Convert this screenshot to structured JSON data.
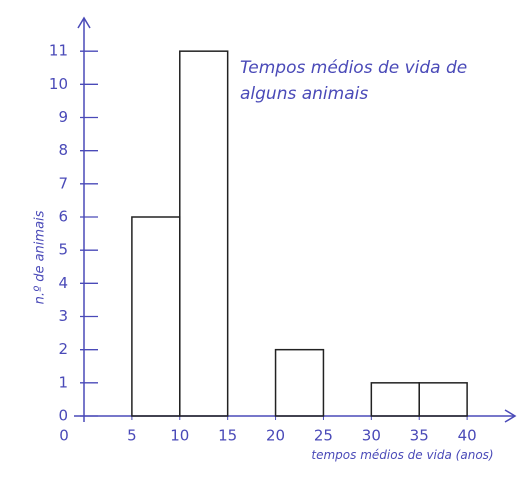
{
  "chart_data": {
    "type": "histogram",
    "title": "Tempos médios de vida de alguns animais",
    "x_label": "tempos médios de vida (anos)",
    "y_label": "n.º de animais",
    "bins": [
      0,
      5,
      10,
      15,
      20,
      25,
      30,
      35,
      40
    ],
    "values": [
      0,
      6,
      11,
      0,
      2,
      0,
      1,
      1
    ],
    "color": "#222222",
    "xlim": [
      0,
      45
    ],
    "ylim": [
      0,
      12
    ],
    "xticks": [
      0,
      5,
      10,
      15,
      20,
      25,
      30,
      35,
      40
    ],
    "yticks": [
      0,
      1,
      2,
      3,
      4,
      5,
      6,
      7,
      8,
      9,
      10,
      11
    ]
  }
}
